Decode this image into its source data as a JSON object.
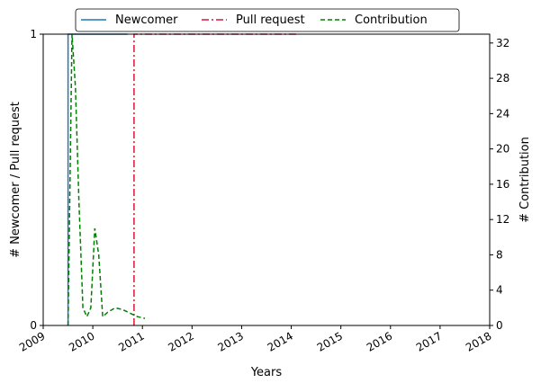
{
  "chart_data": {
    "type": "line",
    "xlabel": "Years",
    "ylabel_left": "# Newcomer / Pull request",
    "ylabel_right": "# Contribution",
    "x_ticks": [
      "2009",
      "2010",
      "2011",
      "2012",
      "2013",
      "2014",
      "2015",
      "2016",
      "2017",
      "2018"
    ],
    "xlim": [
      2009.0,
      2018.0
    ],
    "y_left_ticks": [
      0,
      1
    ],
    "y_left_lim": [
      0,
      1
    ],
    "y_right_ticks": [
      0,
      4,
      8,
      12,
      16,
      20,
      24,
      28,
      32
    ],
    "y_right_lim": [
      0,
      33
    ],
    "legend_position": "top-center",
    "grid": false,
    "series": [
      {
        "name": "Newcomer",
        "axis": "left",
        "color": "#1f77b4",
        "style": "solid",
        "x": [
          2009.5,
          2009.5,
          2009.57,
          2010.7
        ],
        "y": [
          0,
          1,
          1,
          1
        ]
      },
      {
        "name": "Pull request",
        "axis": "left",
        "color": "#dc143c",
        "style": "dashdot",
        "x": [
          2010.83,
          2010.83,
          2014.15
        ],
        "y": [
          0,
          1,
          1
        ]
      },
      {
        "name": "Contribution",
        "axis": "right",
        "color": "#008000",
        "style": "dashed",
        "x": [
          2009.5,
          2009.58,
          2009.65,
          2009.72,
          2009.8,
          2009.88,
          2009.96,
          2010.04,
          2010.12,
          2010.2,
          2010.3,
          2010.45,
          2010.6,
          2010.75,
          2010.9,
          2011.05
        ],
        "y": [
          0,
          33,
          27,
          14,
          2,
          1,
          2,
          11,
          8,
          1,
          1.5,
          2,
          1.8,
          1.4,
          1.0,
          0.8
        ]
      }
    ]
  }
}
